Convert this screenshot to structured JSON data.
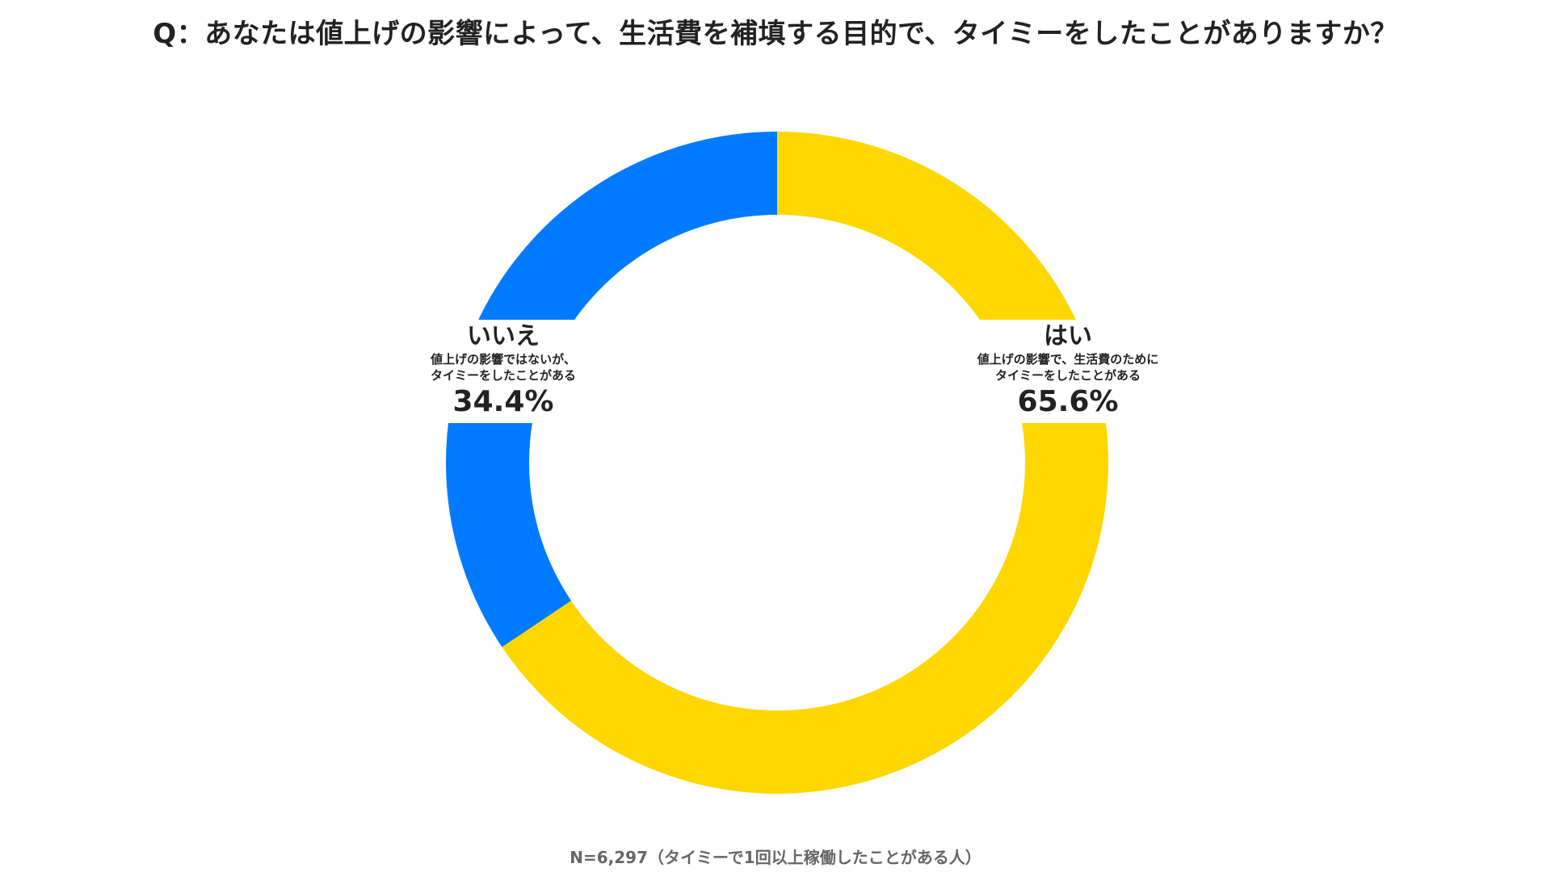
{
  "chart_data": {
    "type": "pie",
    "style": "donut",
    "title": "Q：あなたは値上げの影響によって、生活費を補填する目的で、タイミーをしたことがありますか？",
    "slices": [
      {
        "label": "はい",
        "description_lines": [
          "値上げの影響で、生活費のために",
          "タイミーをしたことがある"
        ],
        "value": 65.6,
        "value_label": "65.6%",
        "color": "#FFD700"
      },
      {
        "label": "いいえ",
        "description_lines": [
          "値上げの影響ではないが、",
          "タイミーをしたことがある"
        ],
        "value": 34.4,
        "value_label": "34.4%",
        "color": "#007BFF"
      }
    ],
    "start": "top",
    "direction": "clockwise",
    "footnote": "N=6,297（タイミーで1回以上稼働したことがある人）"
  }
}
